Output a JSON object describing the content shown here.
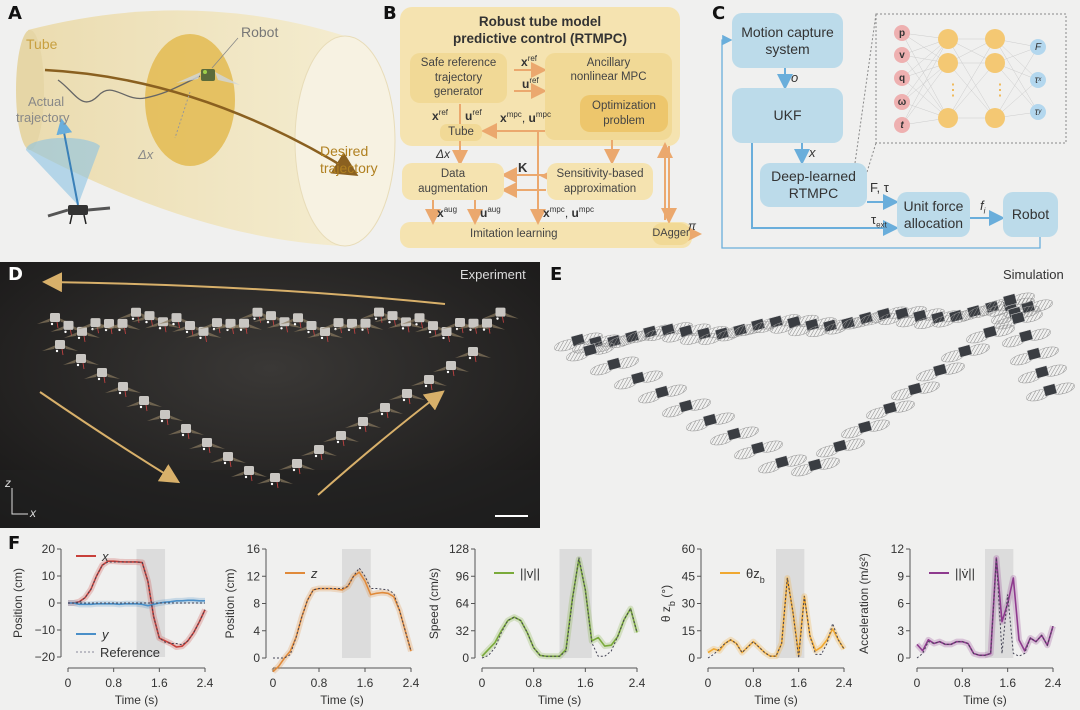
{
  "panel_labels": {
    "a": "A",
    "b": "B",
    "c": "C",
    "d": "D",
    "e": "E",
    "f": "F"
  },
  "panel_a": {
    "tube": "Tube",
    "robot": "Robot",
    "actual_trajectory": [
      "Actual",
      "trajectory"
    ],
    "delta_x": "Δx",
    "desired_trajectory": [
      "Desired",
      "trajectory"
    ],
    "colors": {
      "tube": "#f2e8c6",
      "disc": "#e2b84a",
      "desired": "#8a6020",
      "cone": "#8cc3e3"
    }
  },
  "panel_b": {
    "title": [
      "Robust tube model",
      "predictive control (RTMPC)"
    ],
    "boxes": {
      "safe_reference": [
        "Safe reference",
        "trajectory",
        "generator"
      ],
      "ancillary": [
        "Ancillary",
        "nonlinear MPC"
      ],
      "optimization": [
        "Optimization",
        "problem"
      ],
      "tube": "Tube",
      "data_augmentation": [
        "Data",
        "augmentation"
      ],
      "sensitivity": [
        "Sensitivity-based",
        "approximation"
      ],
      "imitation_learning": "Imitation learning",
      "dagger": "DAgger"
    },
    "signals": {
      "x_ref": {
        "base": "x",
        "sup": "ref"
      },
      "u_ref": {
        "base": "u",
        "sup": "ref"
      },
      "x_mpc": {
        "base": "x",
        "sup": "mpc"
      },
      "u_mpc": {
        "base": "u",
        "sup": "mpc"
      },
      "x_aug": {
        "base": "x",
        "sup": "aug"
      },
      "u_aug": {
        "base": "u",
        "sup": "aug"
      },
      "delta_x": "Δx",
      "K": "K",
      "pi": "π",
      "comma": ","
    },
    "colors": {
      "outer": "#f5e3b0",
      "box": "#f1d48a",
      "inner": "#edc66c",
      "arrow": "#eba86e"
    }
  },
  "panel_c": {
    "boxes": {
      "motion_capture": [
        "Motion capture",
        "system"
      ],
      "ukf": "UKF",
      "deep_learned": [
        "Deep-learned",
        "RTMPC"
      ],
      "unit_force": [
        "Unit force",
        "allocation"
      ],
      "robot": "Robot"
    },
    "signals": {
      "o": "o",
      "x": "x",
      "F_tau": "F, τ",
      "tau_ext": {
        "base": "τ",
        "sub": "ext"
      },
      "f_i": {
        "base": "f",
        "sub": "i"
      }
    },
    "network": {
      "inputs": [
        "p",
        "v",
        "q",
        "ω",
        "t"
      ],
      "outputs": [
        {
          "base": "F",
          "sub": ""
        },
        {
          "base": "τ",
          "sub": "x"
        },
        {
          "base": "τ",
          "sub": "y"
        }
      ],
      "ellipsis": "⋮"
    },
    "colors": {
      "box": "#bcdbea",
      "arrow": "#6aaedb",
      "input_node": "#eeb0b0",
      "hidden_node": "#f4c873",
      "output_node": "#b3d7ee"
    }
  },
  "panel_d": {
    "title": "Experiment",
    "axis_z": "z",
    "axis_x": "x"
  },
  "panel_e": {
    "title": "Simulation"
  },
  "chart_data": [
    {
      "type": "line",
      "xlabel": "Time (s)",
      "ylabel": "Position (cm)",
      "xlim": [
        0,
        2.4
      ],
      "ylim": [
        -20,
        20
      ],
      "xticks": [
        0,
        0.8,
        1.6,
        2.4
      ],
      "xtick_labels": [
        "0",
        "0.8",
        "1.6",
        "2.4"
      ],
      "yticks": [
        -20,
        -10,
        0,
        10,
        20
      ],
      "ytick_labels": [
        "−20",
        "−10",
        "0",
        "10",
        "20"
      ],
      "shaded_interval": [
        1.2,
        1.7
      ],
      "x": [
        0,
        0.1,
        0.2,
        0.3,
        0.4,
        0.5,
        0.6,
        0.7,
        0.8,
        0.9,
        1.0,
        1.1,
        1.2,
        1.3,
        1.4,
        1.5,
        1.6,
        1.7,
        1.8,
        1.9,
        2.0,
        2.1,
        2.2,
        2.3,
        2.4
      ],
      "series": [
        {
          "name": "x",
          "color": "#c8403a",
          "values": [
            0,
            0,
            0.5,
            2,
            5,
            10,
            14,
            15.5,
            15.5,
            15.3,
            15.2,
            15.2,
            15.2,
            15,
            8,
            -5,
            -13,
            -14,
            -15,
            -16.3,
            -16,
            -14,
            -11,
            -7,
            -2.5
          ]
        },
        {
          "name": "y",
          "color": "#4a8fc8",
          "values": [
            0,
            0,
            -0.5,
            -0.5,
            -0.5,
            -0.3,
            -0.3,
            -0.3,
            -0.3,
            -0.5,
            -0.3,
            -0.3,
            -0.3,
            -0.5,
            -1,
            -0.5,
            0,
            0.3,
            0.5,
            0.8,
            0.8,
            1,
            1,
            0.8,
            0.8
          ]
        }
      ],
      "reference": {
        "name": "Reference",
        "series": [
          [
            0,
            0,
            0.3,
            2,
            5,
            10,
            14,
            15.2,
            15.2,
            15.2,
            15.2,
            15.2,
            15.2,
            15,
            8,
            -5,
            -13,
            -14.5,
            -15,
            -15,
            -15.5,
            -14,
            -11,
            -7,
            -2.5
          ],
          [
            0,
            0,
            0,
            0,
            0,
            0,
            0,
            0,
            0,
            0,
            0,
            0,
            0,
            0,
            0,
            0,
            0,
            0,
            0,
            0,
            0,
            0,
            0,
            0,
            0
          ]
        ]
      },
      "legend_placement": "top-left"
    },
    {
      "type": "line",
      "xlabel": "Time (s)",
      "ylabel": "Position (cm)",
      "xlim": [
        0,
        2.4
      ],
      "ylim": [
        0,
        16
      ],
      "xticks": [
        0,
        0.8,
        1.6,
        2.4
      ],
      "xtick_labels": [
        "0",
        "0.8",
        "1.6",
        "2.4"
      ],
      "yticks": [
        0,
        4,
        8,
        12,
        16
      ],
      "ytick_labels": [
        "0",
        "4",
        "8",
        "12",
        "16"
      ],
      "shaded_interval": [
        1.2,
        1.7
      ],
      "x": [
        0,
        0.1,
        0.2,
        0.3,
        0.4,
        0.5,
        0.6,
        0.7,
        0.8,
        0.9,
        1.0,
        1.1,
        1.2,
        1.3,
        1.4,
        1.5,
        1.6,
        1.7,
        1.8,
        1.9,
        2.0,
        2.1,
        2.2,
        2.3,
        2.4
      ],
      "series": [
        {
          "name": "z",
          "color": "#e08a3a",
          "values": [
            -2,
            -1.2,
            0,
            1,
            3,
            6,
            8.5,
            10,
            10.2,
            10.2,
            10.2,
            10.1,
            10,
            10.5,
            12,
            12.6,
            11.3,
            9.3,
            9.5,
            9.6,
            9.5,
            9,
            7,
            4,
            1
          ]
        }
      ],
      "reference": {
        "name": "",
        "series": [
          [
            0,
            0,
            0,
            0.5,
            3,
            6,
            8.5,
            10,
            10.2,
            10.2,
            10.2,
            10.2,
            10.2,
            10.5,
            12,
            13.2,
            12,
            10.2,
            10.2,
            10.1,
            10,
            9.5,
            7,
            4,
            1
          ]
        ]
      },
      "legend_placement": "top-left"
    },
    {
      "type": "line",
      "xlabel": "Time (s)",
      "ylabel": "Speed (cm/s)",
      "xlim": [
        0,
        2.4
      ],
      "ylim": [
        0,
        128
      ],
      "xticks": [
        0,
        0.8,
        1.6,
        2.4
      ],
      "xtick_labels": [
        "0",
        "0.8",
        "1.6",
        "2.4"
      ],
      "yticks": [
        0,
        32,
        64,
        96,
        128
      ],
      "ytick_labels": [
        "0",
        "32",
        "64",
        "96",
        "128"
      ],
      "shaded_interval": [
        1.2,
        1.7
      ],
      "x": [
        0,
        0.1,
        0.2,
        0.3,
        0.4,
        0.5,
        0.6,
        0.7,
        0.8,
        0.9,
        1.0,
        1.1,
        1.2,
        1.3,
        1.4,
        1.5,
        1.6,
        1.7,
        1.8,
        1.9,
        2.0,
        2.1,
        2.2,
        2.3,
        2.4
      ],
      "series": [
        {
          "name": "||v||",
          "color": "#7aaa3a",
          "values": [
            2,
            10,
            18,
            32,
            44,
            48,
            44,
            30,
            12,
            3,
            2,
            2,
            2,
            10,
            70,
            116,
            80,
            20,
            24,
            14,
            15,
            25,
            45,
            58,
            30
          ]
        }
      ],
      "reference": {
        "name": "",
        "series": [
          [
            0,
            3,
            12,
            30,
            44,
            48,
            44,
            30,
            12,
            3,
            2,
            2,
            2,
            8,
            68,
            118,
            80,
            18,
            2,
            2,
            8,
            25,
            45,
            58,
            30
          ]
        ]
      },
      "legend_placement": "top-left"
    },
    {
      "type": "line",
      "xlabel": "Time (s)",
      "ylabel": {
        "text": "θ z",
        "sub": "b",
        "after": " (°)"
      },
      "xlim": [
        0,
        2.4
      ],
      "ylim": [
        0,
        60
      ],
      "xticks": [
        0,
        0.8,
        1.6,
        2.4
      ],
      "xtick_labels": [
        "0",
        "0.8",
        "1.6",
        "2.4"
      ],
      "yticks": [
        0,
        15,
        30,
        45,
        60
      ],
      "ytick_labels": [
        "0",
        "15",
        "30",
        "45",
        "60"
      ],
      "shaded_interval": [
        1.2,
        1.7
      ],
      "x": [
        0,
        0.1,
        0.2,
        0.3,
        0.4,
        0.5,
        0.6,
        0.7,
        0.8,
        0.9,
        1.0,
        1.1,
        1.2,
        1.3,
        1.4,
        1.5,
        1.6,
        1.7,
        1.8,
        1.9,
        2.0,
        2.1,
        2.2,
        2.3,
        2.4
      ],
      "series": [
        {
          "name": {
            "text": "θz",
            "sub": "b"
          },
          "color": "#f0a830",
          "values": [
            3,
            5,
            4,
            8,
            10,
            8,
            3,
            6,
            9,
            6,
            3,
            1,
            1,
            8,
            44,
            25,
            2,
            34,
            12,
            4,
            6,
            10,
            16,
            10,
            5
          ]
        }
      ],
      "reference": {
        "name": "",
        "series": [
          [
            0,
            2,
            5,
            8,
            10,
            8,
            3,
            6,
            9,
            6,
            3,
            1,
            1,
            8,
            44,
            25,
            0,
            34,
            12,
            2,
            2,
            8,
            19,
            10,
            5
          ]
        ]
      },
      "legend_placement": "top-left"
    },
    {
      "type": "line",
      "xlabel": "Time (s)",
      "ylabel": "Acceleration (m/s²)",
      "xlim": [
        0,
        2.4
      ],
      "ylim": [
        0,
        12
      ],
      "xticks": [
        0,
        0.8,
        1.6,
        2.4
      ],
      "xtick_labels": [
        "0",
        "0.8",
        "1.6",
        "2.4"
      ],
      "yticks": [
        0,
        3,
        6,
        9,
        12
      ],
      "ytick_labels": [
        "0",
        "3",
        "6",
        "9",
        "12"
      ],
      "shaded_interval": [
        1.2,
        1.7
      ],
      "x": [
        0,
        0.1,
        0.2,
        0.3,
        0.4,
        0.5,
        0.6,
        0.7,
        0.8,
        0.9,
        1.0,
        1.1,
        1.2,
        1.3,
        1.4,
        1.5,
        1.6,
        1.7,
        1.8,
        1.9,
        2.0,
        2.1,
        2.2,
        2.3,
        2.4
      ],
      "series": [
        {
          "name": "||v̇||",
          "color": "#8e3a8e",
          "values": [
            1.5,
            0.8,
            2,
            1.6,
            1.8,
            1.5,
            1.5,
            1.8,
            1.8,
            1.6,
            0.5,
            0.3,
            0.3,
            0.5,
            11,
            4,
            6,
            8.8,
            2,
            0.8,
            2.2,
            1.8,
            2.5,
            1.4,
            3.5
          ]
        }
      ],
      "reference": {
        "name": "",
        "series": [
          [
            0,
            0.5,
            1.8,
            1.6,
            1.8,
            1.5,
            1.5,
            1.8,
            1.8,
            1.6,
            0.5,
            0.3,
            0.3,
            0.5,
            11,
            0.5,
            7,
            0.5,
            0.2,
            0.5,
            2.2,
            1.8,
            2.5,
            1.4,
            3.5
          ]
        ]
      },
      "legend_placement": "top-left"
    }
  ]
}
